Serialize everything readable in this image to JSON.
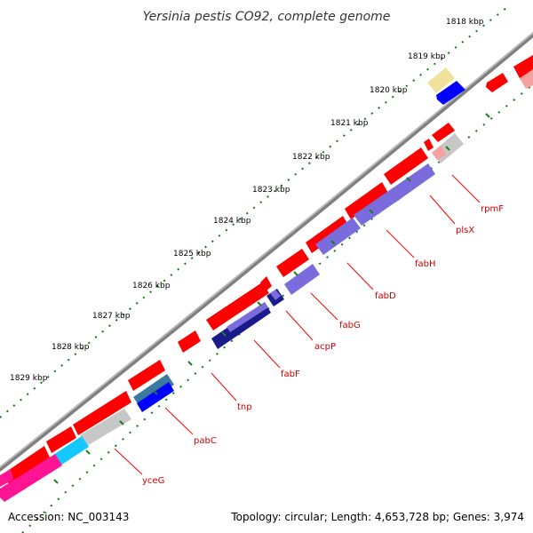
{
  "title": "Yersinia pestis CO92, complete genome",
  "accession": "Accession: NC_003143",
  "summary": "Topology: circular; Length: 4,653,728 bp; Genes: 3,974",
  "colors": {
    "backbone": "#7f7f7f",
    "cds": "#ff0000",
    "label": "#cc0000",
    "ticks": "#117711",
    "ticks_major": "#1e7f1e",
    "cog_lipid": "#7a6cdc",
    "cog_dark": "#1a1a8a",
    "cog_blue": "#0000ff",
    "cog_teal": "#3b7a9e",
    "cog_cyan": "#15c7ff",
    "cog_magenta": "#ff1493",
    "cog_gray": "#c7c7c7",
    "cog_yellow": "#f0e29a",
    "cog_pink": "#f7a0a0"
  },
  "ticks": [
    "1818 kbp",
    "1819 kbp",
    "1820 kbp",
    "1821 kbp",
    "1822 kbp",
    "1823 kbp",
    "1824 kbp",
    "1825 kbp",
    "1826 kbp",
    "1827 kbp",
    "1828 kbp",
    "1829 kbp"
  ],
  "genes": [
    "rpmF",
    "plsX",
    "fabH",
    "fabD",
    "fabG",
    "acpP",
    "fabF",
    "tnp",
    "pabC",
    "yceG"
  ]
}
